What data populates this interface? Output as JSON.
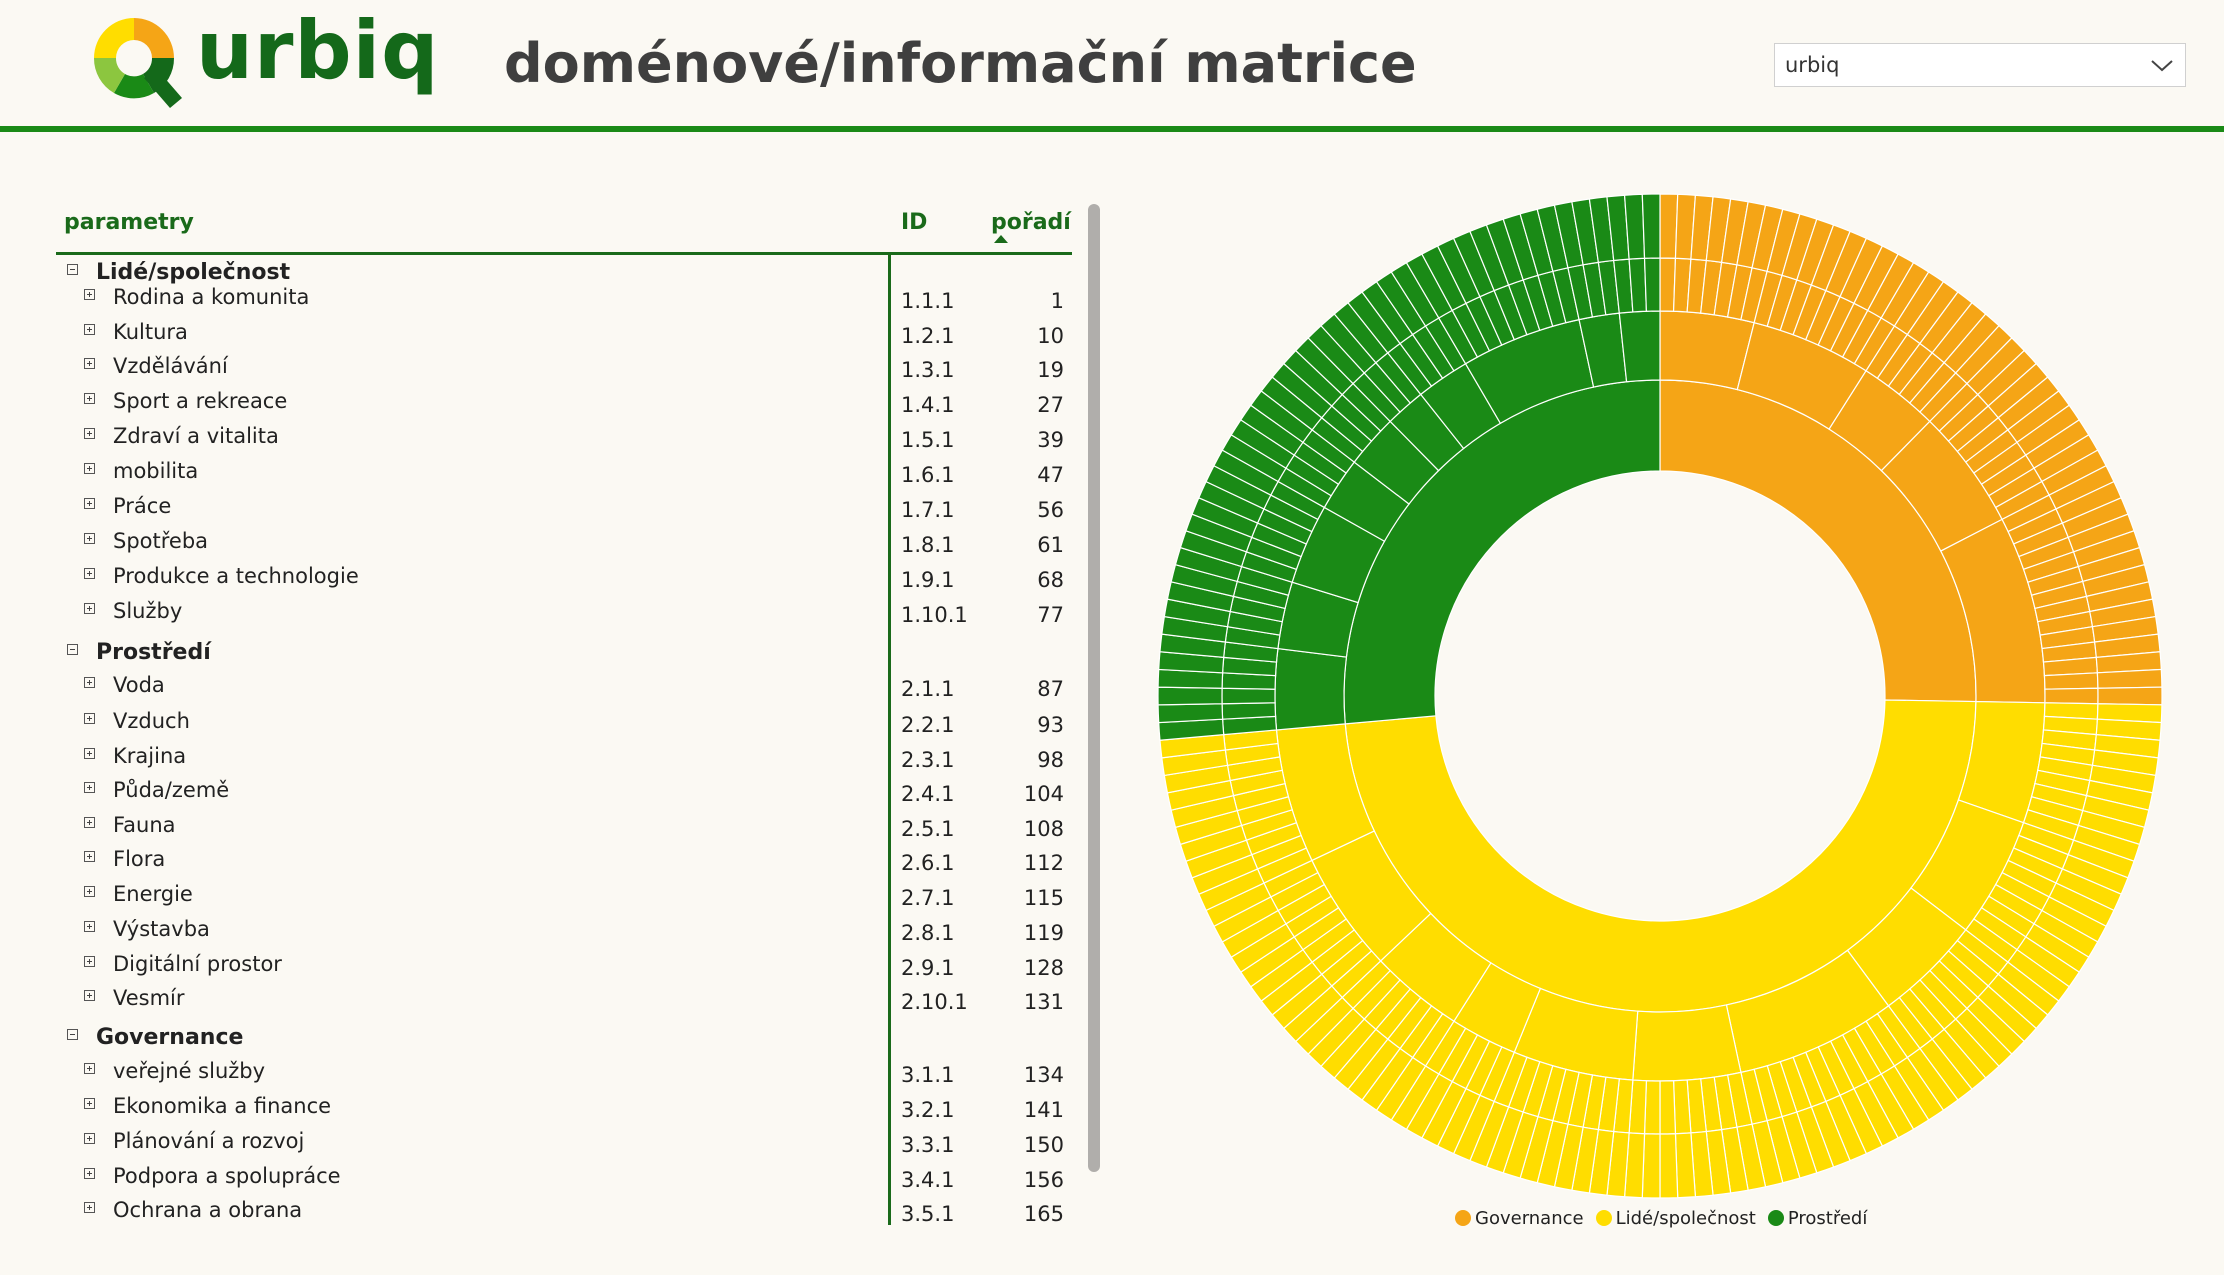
{
  "header": {
    "logo_text": "urbiq",
    "title": "doménové/informační matrice",
    "select": {
      "value": "urbiq",
      "icon": "chevron-down-icon"
    },
    "accent_color": "#1a8a16"
  },
  "table": {
    "columns": {
      "params": "parametry",
      "id": "ID",
      "order": "pořadí"
    },
    "groups": [
      {
        "label": "Lidé/společnost",
        "children": [
          {
            "label": "Rodina a komunita",
            "id": "1.1.1",
            "order": "1"
          },
          {
            "label": "Kultura",
            "id": "1.2.1",
            "order": "10"
          },
          {
            "label": "Vzdělávání",
            "id": "1.3.1",
            "order": "19"
          },
          {
            "label": "Sport a rekreace",
            "id": "1.4.1",
            "order": "27"
          },
          {
            "label": "Zdraví a vitalita",
            "id": "1.5.1",
            "order": "39"
          },
          {
            "label": "mobilita",
            "id": "1.6.1",
            "order": "47"
          },
          {
            "label": "Práce",
            "id": "1.7.1",
            "order": "56"
          },
          {
            "label": "Spotřeba",
            "id": "1.8.1",
            "order": "61"
          },
          {
            "label": "Produkce a technologie",
            "id": "1.9.1",
            "order": "68"
          },
          {
            "label": "Služby",
            "id": "1.10.1",
            "order": "77"
          }
        ]
      },
      {
        "label": "Prostředí",
        "children": [
          {
            "label": "Voda",
            "id": "2.1.1",
            "order": "87"
          },
          {
            "label": "Vzduch",
            "id": "2.2.1",
            "order": "93"
          },
          {
            "label": "Krajina",
            "id": "2.3.1",
            "order": "98"
          },
          {
            "label": "Půda/země",
            "id": "2.4.1",
            "order": "104"
          },
          {
            "label": "Fauna",
            "id": "2.5.1",
            "order": "108"
          },
          {
            "label": "Flora",
            "id": "2.6.1",
            "order": "112"
          },
          {
            "label": "Energie",
            "id": "2.7.1",
            "order": "115"
          },
          {
            "label": "Výstavba",
            "id": "2.8.1",
            "order": "119"
          },
          {
            "label": "Digitální prostor",
            "id": "2.9.1",
            "order": "128"
          },
          {
            "label": "Vesmír",
            "id": "2.10.1",
            "order": "131"
          }
        ]
      },
      {
        "label": "Governance",
        "children": [
          {
            "label": "veřejné služby",
            "id": "3.1.1",
            "order": "134"
          },
          {
            "label": "Ekonomika a finance",
            "id": "3.2.1",
            "order": "141"
          },
          {
            "label": "Plánování a rozvoj",
            "id": "3.3.1",
            "order": "150"
          },
          {
            "label": "Podpora a spolupráce",
            "id": "3.4.1",
            "order": "156"
          },
          {
            "label": "Ochrana a obrana",
            "id": "3.5.1",
            "order": "165"
          }
        ]
      }
    ]
  },
  "chart_data": {
    "type": "sunburst",
    "legend": [
      {
        "name": "Governance",
        "color": "#f5a516"
      },
      {
        "name": "Lidé/společnost",
        "color": "#ffdd00"
      },
      {
        "name": "Prostředí",
        "color": "#1a8a16"
      }
    ],
    "legend_position": "bottom",
    "series": [
      {
        "name": "Governance",
        "value": 45,
        "color": "#f5a516",
        "subsegments": [
          7,
          9,
          6,
          9,
          14
        ]
      },
      {
        "name": "Lidé/společnost",
        "value": 86,
        "color": "#ffdd00",
        "subsegments": [
          9,
          9,
          8,
          12,
          8,
          9,
          5,
          7,
          9,
          10
        ]
      },
      {
        "name": "Prostředí",
        "value": 47,
        "color": "#1a8a16",
        "subsegments": [
          6,
          5,
          6,
          4,
          4,
          3,
          4,
          9,
          3,
          3
        ]
      }
    ]
  }
}
